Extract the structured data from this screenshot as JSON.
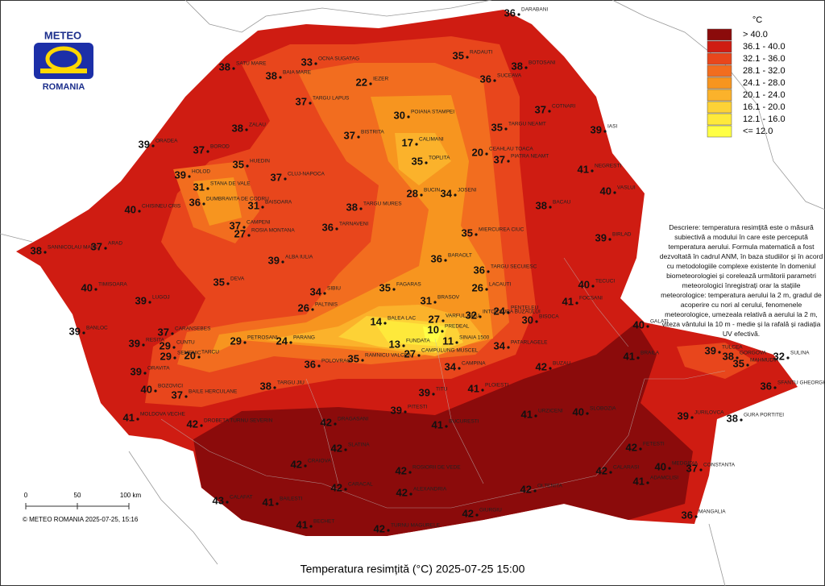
{
  "logo": {
    "line1": "METEO",
    "line2": "ROMANIA"
  },
  "legend": {
    "unit": "°C",
    "classes": [
      {
        "label": "> 40.0",
        "color": "#8b0b0b"
      },
      {
        "label": "36.1 - 40.0",
        "color": "#cf1c12"
      },
      {
        "label": "32.1 - 36.0",
        "color": "#e8461c"
      },
      {
        "label": "28.1 - 32.0",
        "color": "#f26d1f"
      },
      {
        "label": "24.1 - 28.0",
        "color": "#f7951f"
      },
      {
        "label": "20.1 - 24.0",
        "color": "#fbb22b"
      },
      {
        "label": "16.1 - 20.0",
        "color": "#fdd236"
      },
      {
        "label": "12.1 - 16.0",
        "color": "#fee93b"
      },
      {
        "label": "<= 12.0",
        "color": "#ffff45"
      }
    ]
  },
  "description": "Descriere: temperatura resimțită este o măsură subiectivă a modului în care este percepută temperatura aerului. Formula matematică a fost dezvoltată în cadrul ANM, în baza studiilor și în acord cu metodologiile complexe existente în domeniul biometeorologiei și corelează următorii parametri meteorologici înregistrați orar la stațiile meteorologice: temperatura aerului la 2 m, gradul de acoperire cu nori al cerului, fenomenele meteorologice, umezeala relativă a aerului la 2 m, viteza vântului la 10 m - medie și la rafală și radiația UV efectivă.",
  "scale": {
    "ticks": [
      "0",
      "50",
      "100 km"
    ]
  },
  "copyright": "© METEO ROMANIA 2025-07-25, 15:16",
  "title": "Temperatura resimțită (°C) 2025-07-25 15:00",
  "stations": [
    {
      "name": "DARABANI",
      "value": 36
    },
    {
      "name": "RADAUTI",
      "value": 35
    },
    {
      "name": "BOTOSANI",
      "value": 38
    },
    {
      "name": "SUCEAVA",
      "value": 36
    },
    {
      "name": "IEZER",
      "value": 22
    },
    {
      "name": "OCNA SUGATAG",
      "value": 33
    },
    {
      "name": "BAIA MARE",
      "value": 38
    },
    {
      "name": "SATU MARE",
      "value": 38
    },
    {
      "name": "TARGU LAPUS",
      "value": 37
    },
    {
      "name": "POIANA STAMPEI",
      "value": 30
    },
    {
      "name": "COTNARI",
      "value": 37
    },
    {
      "name": "TARGU NEAMT",
      "value": 35
    },
    {
      "name": "IASI",
      "value": 39
    },
    {
      "name": "ZALAU",
      "value": 38
    },
    {
      "name": "BISTRITA",
      "value": 37
    },
    {
      "name": "CALIMANI",
      "value": 17
    },
    {
      "name": "ORADEA",
      "value": 39
    },
    {
      "name": "BOROD",
      "value": 37
    },
    {
      "name": "HUEDIN",
      "value": 35
    },
    {
      "name": "CEAHLAU TOACA",
      "value": 20
    },
    {
      "name": "TOPLITA",
      "value": 35
    },
    {
      "name": "PIATRA NEAMT",
      "value": 37
    },
    {
      "name": "NEGRESTI",
      "value": 41
    },
    {
      "name": "CLUJ-NAPOCA",
      "value": 37
    },
    {
      "name": "HOLOD",
      "value": 39
    },
    {
      "name": "STANA DE VALE",
      "value": 31
    },
    {
      "name": "VASLUI",
      "value": 40
    },
    {
      "name": "CHISINEU CRIS",
      "value": 40
    },
    {
      "name": "JOSENI",
      "value": 34
    },
    {
      "name": "BUCIN",
      "value": 28
    },
    {
      "name": "BAISOARA",
      "value": 31
    },
    {
      "name": "TARGU MURES",
      "value": 38
    },
    {
      "name": "BACAU",
      "value": 38
    },
    {
      "name": "DUMBRAVITA DE CODRU",
      "value": 36
    },
    {
      "name": "CAMPENI",
      "value": 37
    },
    {
      "name": "ROSIA MONTANA",
      "value": 27
    },
    {
      "name": "TARNAVENI",
      "value": 36
    },
    {
      "name": "MIERCUREA CIUC",
      "value": 35
    },
    {
      "name": "ARAD",
      "value": 37
    },
    {
      "name": "SANNICOLAU MARE",
      "value": 38
    },
    {
      "name": "BIRLAD",
      "value": 39
    },
    {
      "name": "ALBA IULIA",
      "value": 39
    },
    {
      "name": "BARAOLT",
      "value": 36
    },
    {
      "name": "TARGU SECUIESC",
      "value": 36
    },
    {
      "name": "DEVA",
      "value": 35
    },
    {
      "name": "TIMISOARA",
      "value": 40
    },
    {
      "name": "SIBIU",
      "value": 34
    },
    {
      "name": "FAGARAS",
      "value": 35
    },
    {
      "name": "LACAUTI",
      "value": 26
    },
    {
      "name": "TECUCI",
      "value": 40
    },
    {
      "name": "LUGOJ",
      "value": 39
    },
    {
      "name": "PALTINIS",
      "value": 26
    },
    {
      "name": "BRASOV",
      "value": 31
    },
    {
      "name": "GALATI",
      "value": 40
    },
    {
      "name": "BALEA LAC",
      "value": 14
    },
    {
      "name": "VARFUL OMU",
      "value": 27
    },
    {
      "name": "INTORSURA BUZAULUI",
      "value": 32
    },
    {
      "name": "PREDEAL",
      "value": 10
    },
    {
      "name": "BISOCA",
      "value": 30
    },
    {
      "name": "PENTELEU",
      "value": 24
    },
    {
      "name": "FOCSANI",
      "value": 41
    },
    {
      "name": "BANLOC",
      "value": 39
    },
    {
      "name": "CARANSEBES",
      "value": 37
    },
    {
      "name": "PETROSANI",
      "value": 29
    },
    {
      "name": "PARANG",
      "value": 24
    },
    {
      "name": "RESITA",
      "value": 39
    },
    {
      "name": "CUNTU",
      "value": 29
    },
    {
      "name": "TARCU",
      "value": 20
    },
    {
      "name": "FUNDATA",
      "value": 13
    },
    {
      "name": "SINAIA 1500",
      "value": 11
    },
    {
      "name": "CAMPULUNG MUSCEL",
      "value": 27
    },
    {
      "name": "PATARLAGELE",
      "value": 34
    },
    {
      "name": "TULCEA",
      "value": 39
    },
    {
      "name": "GORGOVA",
      "value": 38
    },
    {
      "name": "SULINA",
      "value": 32
    },
    {
      "name": "BRAILA",
      "value": 41
    },
    {
      "name": "SEMENIC",
      "value": 29
    },
    {
      "name": "RAMNICU VALCEA",
      "value": 35
    },
    {
      "name": "BUZAU",
      "value": 42
    },
    {
      "name": "POLOVRAGI",
      "value": 36
    },
    {
      "name": "CAMPINA",
      "value": 34
    },
    {
      "name": "MAHMUDIA",
      "value": 35
    },
    {
      "name": "ORAVITA",
      "value": 39
    },
    {
      "name": "TARGU JIU",
      "value": 38
    },
    {
      "name": "BAILE HERCULANE",
      "value": 37
    },
    {
      "name": "SFANTU GHEORGHE",
      "value": 36
    },
    {
      "name": "PLOIESTI",
      "value": 41
    },
    {
      "name": "BOZOVICI",
      "value": 40
    },
    {
      "name": "TITU",
      "value": 39
    },
    {
      "name": "MOLDOVA VECHE",
      "value": 41
    },
    {
      "name": "DROBETA TURNU SEVERIN",
      "value": 42
    },
    {
      "name": "URZICENI",
      "value": 41
    },
    {
      "name": "SLOBOZIA",
      "value": 40
    },
    {
      "name": "JURILOVCA",
      "value": 39
    },
    {
      "name": "GURA PORTITEI",
      "value": 38
    },
    {
      "name": "DRAGASANI",
      "value": 42
    },
    {
      "name": "PITESTI",
      "value": 39
    },
    {
      "name": "BUCURESTI",
      "value": 41
    },
    {
      "name": "FETESTI",
      "value": 42
    },
    {
      "name": "SLATINA",
      "value": 42
    },
    {
      "name": "CALARASI",
      "value": 42
    },
    {
      "name": "CONSTANTA",
      "value": 37
    },
    {
      "name": "CRAIOVA",
      "value": 42
    },
    {
      "name": "ROSIORII DE VEDE",
      "value": 42
    },
    {
      "name": "MEDGIDIA",
      "value": 40
    },
    {
      "name": "ALEXANDRIA",
      "value": 42
    },
    {
      "name": "GIURGIU",
      "value": 42
    },
    {
      "name": "CARACAL",
      "value": 42
    },
    {
      "name": "CALAFAT",
      "value": 43
    },
    {
      "name": "BAILESTI",
      "value": 41
    },
    {
      "name": "ADAMCLISI",
      "value": 41
    },
    {
      "name": "MANGALIA",
      "value": 36
    },
    {
      "name": "BECHET",
      "value": 41
    },
    {
      "name": "TURNU MAGURELE",
      "value": 42
    },
    {
      "name": "OLTENITA",
      "value": 42
    }
  ]
}
